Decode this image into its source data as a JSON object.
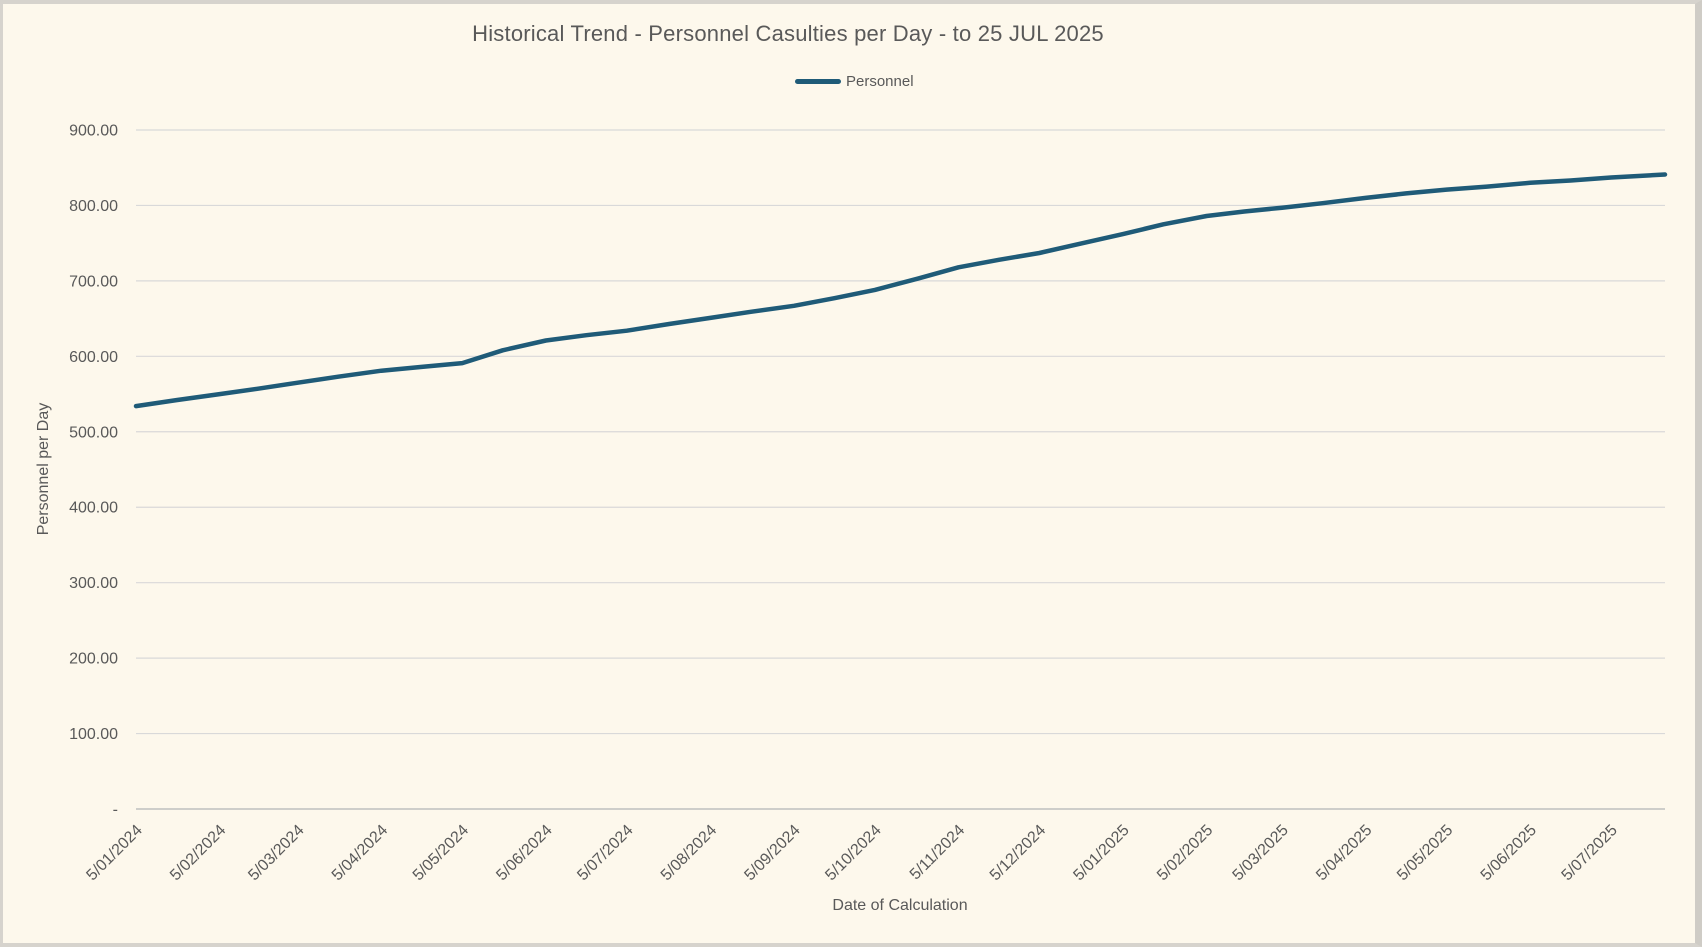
{
  "window": {
    "background": "#fdf8ec",
    "border_color": "#d6d3cd"
  },
  "colors": {
    "series_line": "#1f5b78",
    "grid_line": "#d9d9d9",
    "axis_line": "#bfbfbf",
    "text": "#595959",
    "background": "#fdf8ec"
  },
  "chart": {
    "title": "Historical Trend - Personnel Casulties per Day - to 25 JUL 2025",
    "legend_label": "Personnel"
  },
  "chart_data": {
    "type": "line",
    "title": "Historical Trend - Personnel Casulties per Day - to 25 JUL 2025",
    "xlabel": "Date of Calculation",
    "ylabel": "Personnel per Day",
    "ylim": [
      0,
      900
    ],
    "grid": true,
    "legend_position": "top-center",
    "y_tick_labels": [
      "-",
      "100.00",
      "200.00",
      "300.00",
      "400.00",
      "500.00",
      "600.00",
      "700.00",
      "800.00",
      "900.00"
    ],
    "y_tick_values": [
      0,
      100,
      200,
      300,
      400,
      500,
      600,
      700,
      800,
      900
    ],
    "x_domain_days": [
      0,
      567
    ],
    "x_ticks": [
      {
        "label": "5/01/2024",
        "day": 0
      },
      {
        "label": "5/02/2024",
        "day": 31
      },
      {
        "label": "5/03/2024",
        "day": 60
      },
      {
        "label": "5/04/2024",
        "day": 91
      },
      {
        "label": "5/05/2024",
        "day": 121
      },
      {
        "label": "5/06/2024",
        "day": 152
      },
      {
        "label": "5/07/2024",
        "day": 182
      },
      {
        "label": "5/08/2024",
        "day": 213
      },
      {
        "label": "5/09/2024",
        "day": 244
      },
      {
        "label": "5/10/2024",
        "day": 274
      },
      {
        "label": "5/11/2024",
        "day": 305
      },
      {
        "label": "5/12/2024",
        "day": 335
      },
      {
        "label": "5/01/2025",
        "day": 366
      },
      {
        "label": "5/02/2025",
        "day": 397
      },
      {
        "label": "5/03/2025",
        "day": 425
      },
      {
        "label": "5/04/2025",
        "day": 456
      },
      {
        "label": "5/05/2025",
        "day": 486
      },
      {
        "label": "5/06/2025",
        "day": 517
      },
      {
        "label": "5/07/2025",
        "day": 547
      }
    ],
    "series": [
      {
        "name": "Personnel",
        "color": "#1f5b78",
        "points": [
          [
            0,
            534
          ],
          [
            15,
            542
          ],
          [
            31,
            550
          ],
          [
            45,
            557
          ],
          [
            60,
            565
          ],
          [
            75,
            573
          ],
          [
            91,
            581
          ],
          [
            106,
            586
          ],
          [
            121,
            591
          ],
          [
            136,
            608
          ],
          [
            152,
            621
          ],
          [
            167,
            628
          ],
          [
            182,
            634
          ],
          [
            198,
            643
          ],
          [
            213,
            651
          ],
          [
            228,
            659
          ],
          [
            244,
            667
          ],
          [
            259,
            677
          ],
          [
            274,
            688
          ],
          [
            290,
            703
          ],
          [
            305,
            718
          ],
          [
            320,
            728
          ],
          [
            335,
            737
          ],
          [
            351,
            750
          ],
          [
            366,
            762
          ],
          [
            381,
            775
          ],
          [
            397,
            786
          ],
          [
            411,
            792
          ],
          [
            425,
            797
          ],
          [
            440,
            803
          ],
          [
            456,
            810
          ],
          [
            471,
            816
          ],
          [
            486,
            821
          ],
          [
            501,
            825
          ],
          [
            517,
            830
          ],
          [
            532,
            833
          ],
          [
            547,
            837
          ],
          [
            567,
            841
          ]
        ]
      }
    ]
  }
}
